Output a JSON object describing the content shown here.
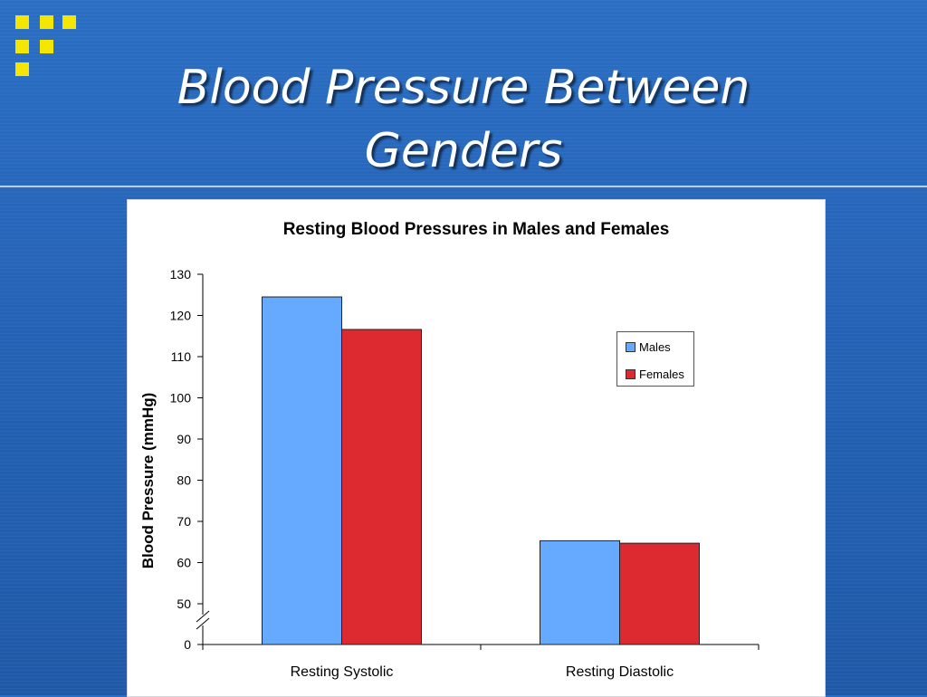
{
  "slide": {
    "title": "Blood Pressure Between\nGenders"
  },
  "colors": {
    "background": "#2563b8",
    "logo": "#f5e600",
    "males": "#66aaff",
    "females": "#dc2a30"
  },
  "icons": {
    "logo": "yellow-squares-logo-icon"
  },
  "chart_data": {
    "type": "bar",
    "title": "Resting Blood Pressures in Males and Females",
    "xlabel": "",
    "ylabel": "Blood Pressure (mmHg)",
    "categories": [
      "Resting Systolic",
      "Resting Diastolic"
    ],
    "series": [
      {
        "name": "Males",
        "values": [
          124.5,
          65.3
        ]
      },
      {
        "name": "Females",
        "values": [
          116.6,
          64.7
        ]
      }
    ],
    "y_ticks": [
      "0",
      "50",
      "60",
      "70",
      "80",
      "90",
      "100",
      "110",
      "120",
      "130"
    ],
    "ylim": [
      0,
      130
    ],
    "axis_break": "between 0 and 50",
    "grid": false,
    "legend_position": "right"
  }
}
